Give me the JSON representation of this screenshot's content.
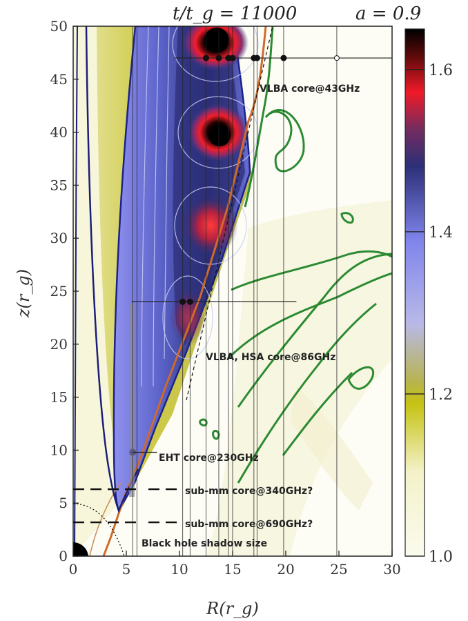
{
  "chart_data": {
    "type": "heatmap",
    "title_left": "t/t_g = 11000",
    "title_right": "a = 0.9",
    "xlabel": "R(r_g)",
    "ylabel": "z(r_g)",
    "xlim": [
      0,
      30
    ],
    "ylim": [
      0,
      50
    ],
    "xticks": [
      0,
      5,
      10,
      15,
      20,
      25,
      30
    ],
    "yticks": [
      0,
      5,
      10,
      15,
      20,
      25,
      30,
      35,
      40,
      45,
      50
    ],
    "colorbar": {
      "min": 1.0,
      "max": 1.65,
      "ticks": [
        "1.0",
        "1.2",
        "1.4",
        "1.6"
      ]
    },
    "cores": [
      {
        "label": "VLBA core@43GHz",
        "R_range": [
          9.5,
          25
        ],
        "z": 47
      },
      {
        "label": "VLBA, HSA core@86GHz",
        "R_range": [
          5.5,
          21
        ],
        "z": 24
      },
      {
        "label": "EHT core@230GHz",
        "R": 5.6,
        "z": 9.8
      },
      {
        "label": "sub-mm core@340GHz?",
        "z": 6.5
      },
      {
        "label": "sub-mm core@690GHz?",
        "z": 3.5
      },
      {
        "label": "Black hole shadow size"
      }
    ],
    "hot_spots": [
      {
        "R": 13.5,
        "z": 48.5,
        "value": 1.65
      },
      {
        "R": 13.6,
        "z": 39.6,
        "value": 1.65
      },
      {
        "R": 12.8,
        "z": 31.2,
        "value": 1.6
      },
      {
        "R": 10.5,
        "z": 22.5,
        "value": 1.55
      }
    ],
    "points_43": [
      {
        "R": 12.5,
        "z": 47
      },
      {
        "R": 13.7,
        "z": 47
      },
      {
        "R": 14.6,
        "z": 47
      },
      {
        "R": 15.0,
        "z": 47
      },
      {
        "R": 17.0,
        "z": 47
      },
      {
        "R": 17.3,
        "z": 47
      },
      {
        "R": 19.8,
        "z": 47
      },
      {
        "R": 24.8,
        "z": 47
      }
    ],
    "points_86": [
      {
        "R": 10.3,
        "z": 24
      },
      {
        "R": 11.0,
        "z": 24
      }
    ],
    "vertical_lines_R": [
      5.6,
      6.0,
      10.3,
      11.0,
      12.5,
      13.7,
      14.6,
      15.0,
      17.0,
      17.3,
      19.8,
      24.8
    ]
  }
}
